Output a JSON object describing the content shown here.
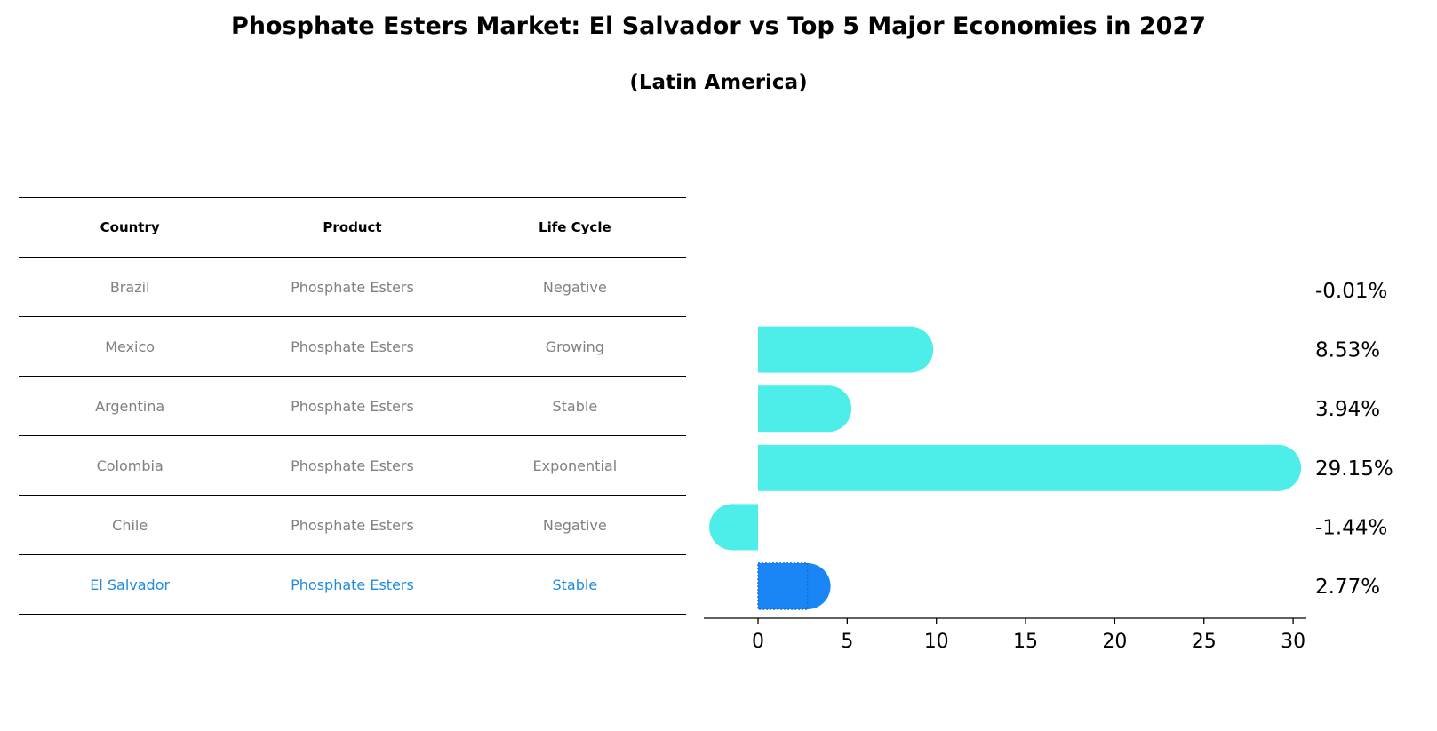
{
  "title": "Phosphate Esters Market: El Salvador vs Top 5 Major Economies in 2027",
  "subtitle": "(Latin America)",
  "table": {
    "headers": [
      "Country",
      "Product",
      "Life Cycle"
    ],
    "rows": [
      {
        "country": "Brazil",
        "product": "Phosphate Esters",
        "life_cycle": "Negative"
      },
      {
        "country": "Mexico",
        "product": "Phosphate Esters",
        "life_cycle": "Growing"
      },
      {
        "country": "Argentina",
        "product": "Phosphate Esters",
        "life_cycle": "Stable"
      },
      {
        "country": "Colombia",
        "product": "Phosphate Esters",
        "life_cycle": "Exponential"
      },
      {
        "country": "Chile",
        "product": "Phosphate Esters",
        "life_cycle": "Negative"
      },
      {
        "country": "El Salvador",
        "product": "Phosphate Esters",
        "life_cycle": "Stable"
      }
    ]
  },
  "colors": {
    "bar": "#4deeea",
    "highlight": "#1a86f5",
    "muted_text": "#808080",
    "highlight_text": "#1f8be0"
  },
  "chart_data": {
    "type": "bar",
    "orientation": "horizontal",
    "categories": [
      "Brazil",
      "Mexico",
      "Argentina",
      "Colombia",
      "Chile",
      "El Salvador"
    ],
    "values": [
      -0.01,
      8.53,
      3.94,
      29.15,
      -1.44,
      2.77
    ],
    "labels": [
      "-0.01%",
      "8.53%",
      "3.94%",
      "29.15%",
      "-1.44%",
      "2.77%"
    ],
    "highlight": "El Salvador",
    "xlim": [
      -3,
      30.6
    ],
    "xticks": [
      0,
      5,
      10,
      15,
      20,
      25,
      30
    ]
  }
}
